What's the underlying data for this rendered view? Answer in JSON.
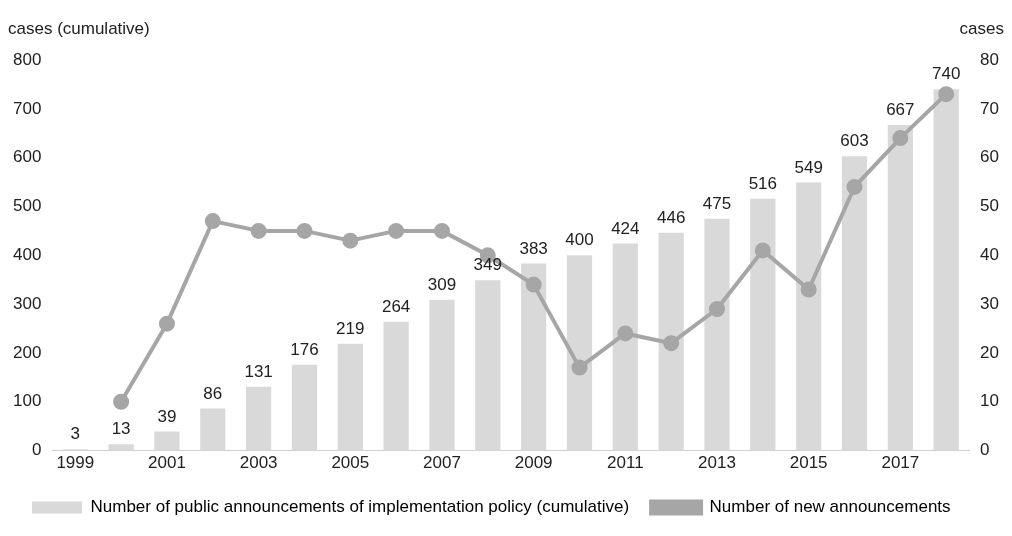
{
  "chart_data": {
    "type": "bar",
    "ylabel": "cases (cumulative)",
    "y2label": "cases",
    "categories": [
      "1999",
      null,
      "2001",
      null,
      "2003",
      null,
      "2005",
      null,
      "2007",
      null,
      "2009",
      null,
      "2011",
      null,
      "2013",
      null,
      "2015",
      null,
      "2017",
      null
    ],
    "series": [
      {
        "name": "Number of public announcements of implementation policy (cumulative)",
        "color": "#d9d9d9",
        "values": [
          3,
          13,
          39,
          86,
          131,
          176,
          219,
          264,
          309,
          349,
          383,
          400,
          424,
          446,
          475,
          516,
          549,
          603,
          667,
          740
        ],
        "value_labels": [
          "3",
          "13",
          "39",
          "86",
          "131",
          "176",
          "219",
          "264",
          "309",
          "349",
          "383",
          "400",
          "424",
          "446",
          "475",
          "516",
          "549",
          "603",
          "667",
          "740"
        ]
      },
      {
        "name": "Number of new announcements",
        "type": "line",
        "axis": "y2",
        "color": "#a6a6a6",
        "values": [
          null,
          10,
          26,
          47,
          45,
          45,
          43,
          45,
          45,
          40,
          34,
          17,
          24,
          22,
          29,
          41,
          33,
          54,
          64,
          73
        ]
      }
    ],
    "ylim": [
      0,
      800
    ],
    "yticks": [
      0,
      100,
      200,
      300,
      400,
      500,
      600,
      700,
      800
    ],
    "y2lim": [
      0,
      80
    ],
    "y2ticks": [
      0,
      10,
      20,
      30,
      40,
      50,
      60,
      70,
      80
    ],
    "grid": false,
    "legend": "bottom",
    "marker": "circle",
    "line_style": "solid"
  }
}
